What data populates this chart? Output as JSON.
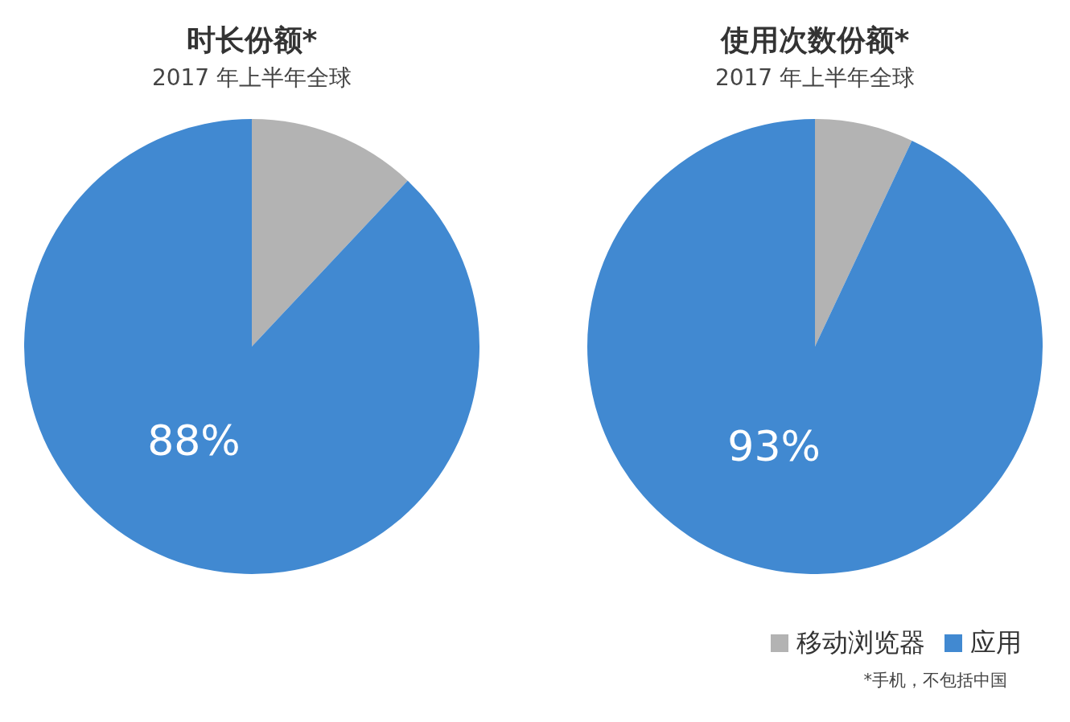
{
  "chart_data": [
    {
      "type": "pie",
      "title": "时长份额*",
      "subtitle": "2017 年上半年全球",
      "categories": [
        null,
        null
      ],
      "values": [
        12,
        88
      ],
      "colors": [
        "#b3b3b3",
        "#4189d1"
      ],
      "value_labels": [
        null,
        "88%"
      ],
      "legend": false
    },
    {
      "type": "pie",
      "title": "使用次数份额*",
      "subtitle": "2017 年上半年全球",
      "categories": [
        "移动浏览器",
        "应用"
      ],
      "values": [
        7,
        93
      ],
      "colors": [
        "#b3b3b3",
        "#4189d1"
      ],
      "value_labels": [
        null,
        "93%"
      ],
      "legend": "bottom right",
      "annotations": [
        "*手机，不包括中国"
      ]
    }
  ]
}
